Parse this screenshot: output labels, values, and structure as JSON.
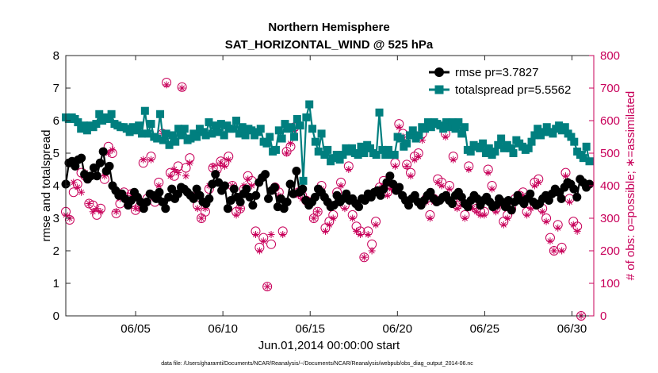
{
  "chart_data": {
    "type": "line",
    "title_line1": "Northern Hemisphere",
    "title_line2": "SAT_HORIZONTAL_WIND @ 525 hPa",
    "xlabel": "Jun.01,2014 00:00:00 start",
    "ylabel_left": "rmse and totalspread",
    "ylabel_right": "# of obs: o=possible; ∗=assimilated",
    "footer": "data file: /Users/gharamti/Documents/NCAR/Reanalysis/~/Documents/NCAR/Reanalysis/webpub/obs_diag_output_2014-06.nc",
    "xlim": [
      1.0,
      31.25
    ],
    "ylim_left": [
      0,
      8
    ],
    "ylim_right": [
      0,
      800
    ],
    "x_ticks": [
      5,
      10,
      15,
      20,
      25,
      30
    ],
    "x_tick_labels": [
      "06/05",
      "06/10",
      "06/15",
      "06/20",
      "06/25",
      "06/30"
    ],
    "y_left_ticks": [
      "0",
      "1",
      "2",
      "3",
      "4",
      "5",
      "6",
      "7",
      "8"
    ],
    "y_right_ticks": [
      "0",
      "100",
      "200",
      "300",
      "400",
      "500",
      "600",
      "700",
      "800"
    ],
    "legend": [
      "rmse pr=3.7827",
      "totalspread pr=5.5562"
    ],
    "colors": {
      "rmse": "#000000",
      "spread": "#007f7f",
      "obs": "#c8005a"
    },
    "series": [
      {
        "name": "rmse",
        "values": [
          4.05,
          4.7,
          4.75,
          4.6,
          4.8,
          4.85,
          4.35,
          4.2,
          4.3,
          4.55,
          4.3,
          4.7,
          5.05,
          4.45,
          4.6,
          4.0,
          3.85,
          3.7,
          3.75,
          3.6,
          3.4,
          3.55,
          3.8,
          3.65,
          3.5,
          3.3,
          3.5,
          3.75,
          3.7,
          3.6,
          3.8,
          3.5,
          3.3,
          3.65,
          3.9,
          3.6,
          3.75,
          3.95,
          3.9,
          3.8,
          3.7,
          3.6,
          3.9,
          3.7,
          3.5,
          3.45,
          3.6,
          4.05,
          4.35,
          4.1,
          3.85,
          4.0,
          3.3,
          3.55,
          3.9,
          3.65,
          3.5,
          3.75,
          3.9,
          3.65,
          3.4,
          3.7,
          4.1,
          4.25,
          4.35,
          3.6,
          3.85,
          3.95,
          3.35,
          3.6,
          3.3,
          3.5,
          4.05,
          3.75,
          4.45,
          3.8,
          3.9,
          3.55,
          3.4,
          3.5,
          3.65,
          3.9,
          3.8,
          3.65,
          3.5,
          3.35,
          3.4,
          3.7,
          3.5,
          3.6,
          3.75,
          3.55,
          3.6,
          3.45,
          3.35,
          3.6,
          3.55,
          3.75,
          3.65,
          3.8,
          3.85,
          3.7,
          3.9,
          4.1,
          4.3,
          4.05,
          3.85,
          3.95,
          3.7,
          3.55,
          3.4,
          3.6,
          3.7,
          3.5,
          3.4,
          3.55,
          3.7,
          3.8,
          3.6,
          3.5,
          3.55,
          3.65,
          3.7,
          3.55,
          3.45,
          3.7,
          3.8,
          3.65,
          3.45,
          3.35,
          3.55,
          3.7,
          3.6,
          3.4,
          3.55,
          3.65,
          3.5,
          3.35,
          3.4,
          3.6,
          3.5,
          3.35,
          3.55,
          3.25,
          3.5,
          3.7,
          3.55,
          3.45,
          3.6,
          3.75,
          3.5,
          3.4,
          3.45,
          3.6,
          3.7,
          3.55,
          3.75,
          3.9,
          3.8,
          3.6,
          3.95,
          4.1,
          4.05,
          3.9,
          3.65,
          4.2,
          4.1,
          3.95,
          4.05
        ]
      },
      {
        "name": "totalspread",
        "values": [
          6.1,
          6.05,
          6.1,
          6.05,
          5.95,
          5.75,
          5.85,
          5.7,
          5.85,
          5.8,
          5.9,
          6.2,
          6.0,
          6.1,
          6.05,
          6.2,
          5.9,
          5.85,
          5.8,
          5.8,
          5.75,
          5.65,
          5.8,
          5.7,
          5.85,
          5.6,
          6.3,
          5.6,
          5.9,
          5.5,
          5.45,
          6.2,
          5.4,
          5.6,
          5.25,
          5.55,
          5.35,
          5.75,
          5.55,
          5.75,
          5.4,
          5.45,
          5.6,
          5.5,
          5.75,
          5.65,
          5.55,
          5.95,
          5.6,
          5.85,
          5.65,
          5.9,
          5.55,
          5.85,
          5.75,
          5.75,
          6.0,
          5.6,
          5.8,
          5.55,
          5.75,
          5.7,
          5.55,
          5.65,
          5.75,
          5.35,
          5.3,
          5.5,
          5.05,
          5.1,
          5.7,
          5.45,
          5.9,
          5.75,
          5.8,
          5.5,
          6.05,
          5.85,
          4.15,
          6.1,
          6.5,
          5.75,
          5.35,
          5.05,
          5.6,
          4.95,
          5.1,
          4.75,
          4.85,
          4.95,
          4.8,
          4.95,
          5.15,
          5.05,
          5.15,
          5.0,
          4.95,
          5.2,
          5.0,
          5.25,
          5.15,
          5.0,
          4.95,
          6.25,
          5.1,
          4.95,
          5.1,
          4.95,
          4.95,
          5.5,
          5.45,
          5.2,
          5.3,
          5.55,
          5.7,
          5.45,
          5.55,
          5.8,
          5.75,
          5.95,
          5.8,
          5.95,
          5.9,
          5.85,
          5.75,
          5.95,
          5.8,
          5.95,
          5.75,
          5.95,
          5.6,
          5.8,
          5.1,
          5.05,
          5.25,
          5.2,
          5.15,
          5.3,
          5.0,
          5.15,
          4.95,
          5.05,
          5.25,
          5.45,
          5.15,
          5.25,
          5.15,
          5.0,
          5.4,
          5.3,
          5.2,
          5.1,
          5.15,
          5.35,
          5.55,
          5.75,
          5.55,
          5.65,
          5.8,
          5.65,
          5.6,
          5.75,
          5.85,
          5.7,
          5.8,
          5.6,
          5.5,
          5.35,
          5.05,
          4.95,
          4.85,
          5.2,
          4.75
        ]
      },
      {
        "name": "possible",
        "values": [
          320,
          295,
          380,
          405,
          440,
          430,
          345,
          340,
          310,
          330,
          420,
          520,
          500,
          315,
          345,
          380,
          365,
          375,
          325,
          335,
          470,
          360,
          490,
          350,
          410,
          560,
          717,
          440,
          430,
          460,
          703,
          455,
          485,
          365,
          340,
          300,
          320,
          390,
          455,
          450,
          475,
          470,
          490,
          400,
          320,
          330,
          390,
          430,
          415,
          260,
          210,
          240,
          90,
          220,
          395,
          380,
          260,
          505,
          520,
          580,
          380,
          370,
          355,
          350,
          300,
          320,
          400,
          270,
          290,
          310,
          380,
          410,
          340,
          460,
          310,
          275,
          260,
          180,
          260,
          220,
          290,
          395,
          415,
          380,
          400,
          470,
          590,
          560,
          465,
          440,
          490,
          500,
          560,
          360,
          310,
          360,
          420,
          410,
          560,
          400,
          490,
          340,
          350,
          310,
          460,
          340,
          330,
          320,
          320,
          450,
          400,
          330,
          350,
          290,
          310,
          330,
          360,
          370,
          380,
          320,
          340,
          410,
          420,
          330,
          300,
          240,
          200,
          280,
          210,
          440,
          360,
          290,
          275,
          0
        ],
        "x_start": 1.0,
        "x_step": 0.222
      },
      {
        "name": "assimilated",
        "values": [
          310,
          300,
          410,
          395,
          380,
          440,
          345,
          320,
          330,
          320,
          430,
          500,
          510,
          320,
          360,
          370,
          350,
          370,
          330,
          330,
          480,
          350,
          480,
          360,
          400,
          560,
          710,
          430,
          450,
          440,
          700,
          430,
          470,
          360,
          330,
          300,
          330,
          400,
          460,
          440,
          470,
          460,
          480,
          400,
          310,
          330,
          400,
          420,
          400,
          250,
          200,
          230,
          90,
          250,
          390,
          370,
          250,
          500,
          530,
          570,
          370,
          360,
          350,
          340,
          300,
          320,
          390,
          260,
          280,
          300,
          370,
          400,
          330,
          450,
          300,
          260,
          250,
          180,
          250,
          200,
          280,
          390,
          400,
          370,
          390,
          460,
          580,
          550,
          460,
          430,
          480,
          490,
          540,
          350,
          300,
          350,
          410,
          400,
          550,
          390,
          480,
          330,
          340,
          300,
          450,
          330,
          320,
          310,
          310,
          440,
          390,
          320,
          340,
          280,
          300,
          320,
          350,
          360,
          370,
          310,
          330,
          400,
          410,
          320,
          290,
          230,
          200,
          270,
          200,
          430,
          350,
          280,
          260,
          0
        ],
        "x_start": 1.0,
        "x_step": 0.222
      }
    ]
  }
}
